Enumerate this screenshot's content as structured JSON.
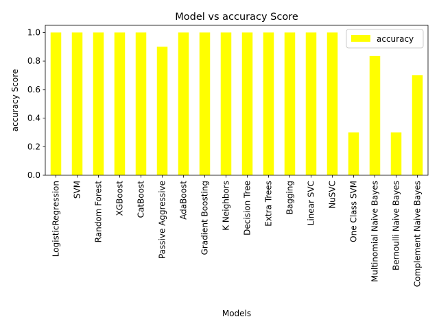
{
  "chart_data": {
    "type": "bar",
    "title": "Model vs accuracy Score",
    "xlabel": "Models",
    "ylabel": "accuracy Score",
    "ylim": [
      0,
      1.05
    ],
    "yticks": [
      "0.0",
      "0.2",
      "0.4",
      "0.6",
      "0.8",
      "1.0"
    ],
    "grid": false,
    "legend": {
      "placement": "top-right",
      "entries": [
        "accuracy"
      ]
    },
    "bar_color": "#ffff00",
    "categories": [
      "LogisticRegression",
      "SVM",
      "Random Forest",
      "XGBoost",
      "CatBoost",
      "Passive Aggressive",
      "AdaBoost",
      "Gradient Boosting",
      "K Neighbors",
      "Decision Tree",
      "Extra Trees",
      "Bagging",
      "Linear SVC",
      "NuSVC",
      "One Class SVM",
      "Multinomial Naive Bayes",
      "Bernoulli Naive Bayes",
      "Complement Naive Bayes"
    ],
    "series": [
      {
        "name": "accuracy",
        "values": [
          1.0,
          1.0,
          1.0,
          1.0,
          1.0,
          0.9,
          1.0,
          1.0,
          1.0,
          1.0,
          1.0,
          1.0,
          1.0,
          1.0,
          0.3,
          0.835,
          0.3,
          0.7
        ]
      }
    ]
  }
}
